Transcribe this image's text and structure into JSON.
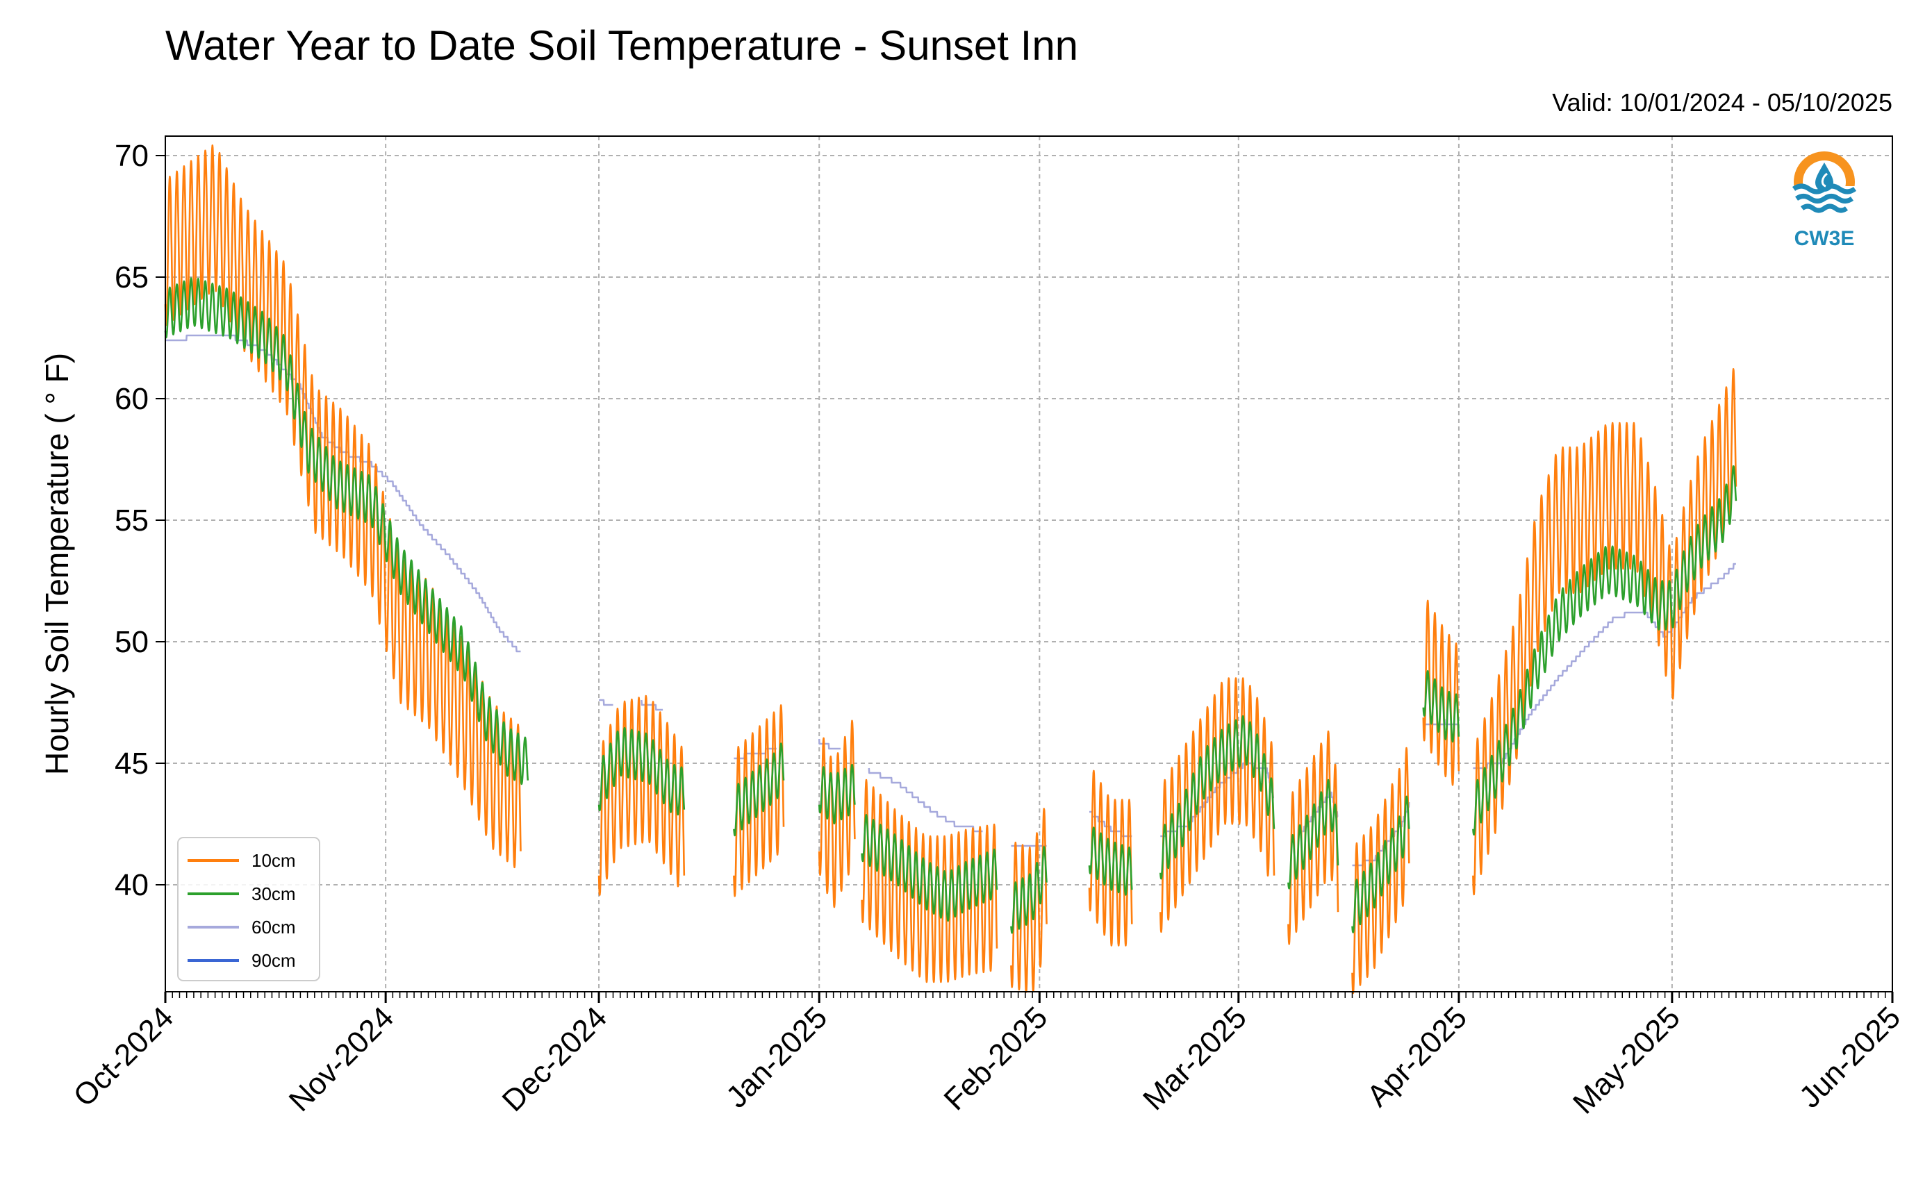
{
  "chart_data": {
    "type": "line",
    "title": "Water Year to Date Soil Temperature - Sunset Inn",
    "subtitle": "Valid: 10/01/2024 - 05/10/2025",
    "ylabel": "Hourly Soil Temperature ( ° F)",
    "xlabel": "",
    "ylim": [
      35.6,
      70.8
    ],
    "xlim": [
      "2024-10-01",
      "2025-06-01"
    ],
    "yticks": [
      40,
      45,
      50,
      55,
      60,
      65,
      70
    ],
    "xticks": [
      "Oct-2024",
      "Nov-2024",
      "Dec-2024",
      "Jan-2025",
      "Feb-2025",
      "Mar-2025",
      "Apr-2025",
      "May-2025",
      "Jun-2025"
    ],
    "grid": true,
    "legend_position": "bottom-left",
    "logo_text": "CW3E",
    "series": [
      {
        "name": "10cm",
        "color": "#ff7f0e",
        "diurnal_amplitude": 3,
        "segments": [
          [
            [
              "2024-10-01",
              66.0
            ],
            [
              "2024-10-08",
              67.5
            ],
            [
              "2024-10-12",
              65.0
            ],
            [
              "2024-10-18",
              62.5
            ],
            [
              "2024-10-22",
              57.5
            ],
            [
              "2024-10-26",
              56.5
            ],
            [
              "2024-10-30",
              55.0
            ],
            [
              "2024-11-03",
              50.5
            ],
            [
              "2024-11-07",
              49.5
            ],
            [
              "2024-11-12",
              47.0
            ],
            [
              "2024-11-16",
              44.5
            ],
            [
              "2024-11-20",
              43.5
            ]
          ],
          [
            [
              "2024-12-01",
              42.5
            ],
            [
              "2024-12-04",
              44.5
            ],
            [
              "2024-12-08",
              44.8
            ],
            [
              "2024-12-11",
              43.5
            ],
            [
              "2024-12-13",
              42.5
            ]
          ],
          [
            [
              "2024-12-20",
              42.5
            ],
            [
              "2024-12-26",
              44.2
            ],
            [
              "2024-12-27",
              44.5
            ]
          ],
          [
            [
              "2025-01-01",
              43.5
            ],
            [
              "2025-01-03",
              42.0
            ],
            [
              "2025-01-06",
              44.0
            ]
          ],
          [
            [
              "2025-01-07",
              41.5
            ],
            [
              "2025-01-12",
              40.0
            ],
            [
              "2025-01-16",
              39.0
            ],
            [
              "2025-01-19",
              39.0
            ],
            [
              "2025-01-22",
              39.3
            ],
            [
              "2025-01-26",
              39.5
            ]
          ],
          [
            [
              "2025-01-28",
              38.8
            ],
            [
              "2025-01-31",
              38.5
            ],
            [
              "2025-02-02",
              40.5
            ]
          ],
          [
            [
              "2025-02-08",
              42.0
            ],
            [
              "2025-02-11",
              40.5
            ],
            [
              "2025-02-14",
              40.5
            ]
          ],
          [
            [
              "2025-02-18",
              41.0
            ],
            [
              "2025-02-21",
              42.5
            ],
            [
              "2025-02-24",
              44.0
            ],
            [
              "2025-02-27",
              45.5
            ],
            [
              "2025-03-02",
              45.5
            ],
            [
              "2025-03-04",
              44.5
            ],
            [
              "2025-03-06",
              42.5
            ]
          ],
          [
            [
              "2025-03-08",
              40.5
            ],
            [
              "2025-03-11",
              42.0
            ],
            [
              "2025-03-14",
              43.5
            ],
            [
              "2025-03-15",
              41.0
            ]
          ],
          [
            [
              "2025-03-17",
              38.5
            ],
            [
              "2025-03-20",
              39.5
            ],
            [
              "2025-03-24",
              42.0
            ],
            [
              "2025-03-25",
              43.0
            ]
          ],
          [
            [
              "2025-03-27",
              49.0
            ],
            [
              "2025-03-30",
              47.5
            ],
            [
              "2025-04-01",
              46.8
            ]
          ],
          [
            [
              "2025-04-03",
              42.5
            ],
            [
              "2025-04-06",
              45.0
            ],
            [
              "2025-04-09",
              48.0
            ],
            [
              "2025-04-12",
              52.5
            ],
            [
              "2025-04-15",
              55.0
            ],
            [
              "2025-04-18",
              55.0
            ],
            [
              "2025-04-22",
              56.0
            ],
            [
              "2025-04-26",
              56.0
            ],
            [
              "2025-04-29",
              53.0
            ],
            [
              "2025-05-01",
              50.5
            ],
            [
              "2025-05-03",
              53.0
            ],
            [
              "2025-05-05",
              55.0
            ],
            [
              "2025-05-08",
              57.0
            ],
            [
              "2025-05-10",
              58.5
            ]
          ]
        ]
      },
      {
        "name": "30cm",
        "color": "#2ca02c",
        "diurnal_amplitude": 1,
        "segments": [
          [
            [
              "2024-10-01",
              63.5
            ],
            [
              "2024-10-05",
              64.0
            ],
            [
              "2024-10-10",
              63.5
            ],
            [
              "2024-10-15",
              62.5
            ],
            [
              "2024-10-18",
              61.5
            ],
            [
              "2024-10-21",
              58.0
            ],
            [
              "2024-10-25",
              56.5
            ],
            [
              "2024-10-30",
              55.8
            ],
            [
              "2024-11-03",
              53.0
            ],
            [
              "2024-11-08",
              51.0
            ],
            [
              "2024-11-12",
              49.5
            ],
            [
              "2024-11-15",
              47.0
            ],
            [
              "2024-11-18",
              45.5
            ],
            [
              "2024-11-21",
              45.0
            ]
          ],
          [
            [
              "2024-12-01",
              44.0
            ],
            [
              "2024-12-04",
              45.5
            ],
            [
              "2024-12-08",
              45.2
            ],
            [
              "2024-12-11",
              44.0
            ],
            [
              "2024-12-13",
              43.8
            ]
          ],
          [
            [
              "2024-12-20",
              43.0
            ],
            [
              "2024-12-26",
              44.5
            ],
            [
              "2024-12-27",
              45.0
            ]
          ],
          [
            [
              "2025-01-01",
              44.0
            ],
            [
              "2025-01-03",
              43.5
            ],
            [
              "2025-01-06",
              44.0
            ]
          ],
          [
            [
              "2025-01-07",
              42.0
            ],
            [
              "2025-01-12",
              41.0
            ],
            [
              "2025-01-16",
              40.0
            ],
            [
              "2025-01-19",
              39.5
            ],
            [
              "2025-01-22",
              40.0
            ],
            [
              "2025-01-26",
              40.5
            ]
          ],
          [
            [
              "2025-01-28",
              39.0
            ],
            [
              "2025-01-31",
              39.5
            ],
            [
              "2025-02-02",
              40.8
            ]
          ],
          [
            [
              "2025-02-08",
              41.5
            ],
            [
              "2025-02-11",
              40.8
            ],
            [
              "2025-02-14",
              40.5
            ]
          ],
          [
            [
              "2025-02-18",
              41.2
            ],
            [
              "2025-02-21",
              42.5
            ],
            [
              "2025-02-24",
              44.5
            ],
            [
              "2025-02-27",
              45.5
            ],
            [
              "2025-03-02",
              46.0
            ],
            [
              "2025-03-04",
              45.0
            ],
            [
              "2025-03-06",
              43.0
            ]
          ],
          [
            [
              "2025-03-08",
              40.8
            ],
            [
              "2025-03-11",
              42.0
            ],
            [
              "2025-03-14",
              43.5
            ],
            [
              "2025-03-15",
              41.5
            ]
          ],
          [
            [
              "2025-03-17",
              39.0
            ],
            [
              "2025-03-20",
              40.0
            ],
            [
              "2025-03-24",
              42.0
            ],
            [
              "2025-03-25",
              43.0
            ]
          ],
          [
            [
              "2025-03-27",
              48.0
            ],
            [
              "2025-03-30",
              47.0
            ],
            [
              "2025-04-01",
              46.8
            ]
          ],
          [
            [
              "2025-04-03",
              43.0
            ],
            [
              "2025-04-06",
              44.5
            ],
            [
              "2025-04-09",
              46.5
            ],
            [
              "2025-04-12",
              49.0
            ],
            [
              "2025-04-15",
              51.0
            ],
            [
              "2025-04-18",
              52.0
            ],
            [
              "2025-04-22",
              53.0
            ],
            [
              "2025-04-26",
              52.5
            ],
            [
              "2025-04-29",
              51.5
            ],
            [
              "2025-05-01",
              51.5
            ],
            [
              "2025-05-03",
              53.0
            ],
            [
              "2025-05-05",
              54.0
            ],
            [
              "2025-05-08",
              55.0
            ],
            [
              "2025-05-10",
              56.5
            ]
          ]
        ]
      },
      {
        "name": "60cm",
        "color": "#a6a9dc",
        "diurnal_amplitude": 0,
        "segments": [
          [
            [
              "2024-10-01",
              62.3
            ],
            [
              "2024-10-04",
              62.5
            ],
            [
              "2024-10-10",
              62.6
            ],
            [
              "2024-10-15",
              62.0
            ],
            [
              "2024-10-20",
              60.5
            ],
            [
              "2024-10-23",
              58.5
            ],
            [
              "2024-10-26",
              57.8
            ],
            [
              "2024-10-30",
              57.3
            ],
            [
              "2024-11-02",
              56.5
            ],
            [
              "2024-11-06",
              54.8
            ],
            [
              "2024-11-10",
              53.5
            ],
            [
              "2024-11-14",
              52.0
            ],
            [
              "2024-11-17",
              50.5
            ],
            [
              "2024-11-20",
              49.5
            ]
          ],
          [
            [
              "2024-12-01",
              47.6
            ],
            [
              "2024-12-03",
              47.3
            ]
          ],
          [
            [
              "2024-12-07",
              47.5
            ],
            [
              "2024-12-10",
              47.2
            ]
          ],
          [
            [
              "2024-12-20",
              45.2
            ],
            [
              "2024-12-26",
              45.6
            ]
          ],
          [
            [
              "2025-01-01",
              45.9
            ],
            [
              "2025-01-03",
              45.6
            ],
            [
              "2025-01-04",
              45.5
            ]
          ],
          [
            [
              "2025-01-08",
              44.7
            ],
            [
              "2025-01-12",
              44.2
            ],
            [
              "2025-01-17",
              43.0
            ],
            [
              "2025-01-20",
              42.5
            ],
            [
              "2025-01-24",
              42.2
            ]
          ],
          [
            [
              "2025-01-28",
              41.6
            ],
            [
              "2025-02-02",
              41.5
            ]
          ],
          [
            [
              "2025-02-08",
              43.0
            ],
            [
              "2025-02-11",
              42.3
            ],
            [
              "2025-02-14",
              41.9
            ]
          ],
          [
            [
              "2025-02-18",
              42.0
            ],
            [
              "2025-02-22",
              42.5
            ],
            [
              "2025-02-26",
              44.0
            ],
            [
              "2025-03-02",
              45.0
            ],
            [
              "2025-03-05",
              44.7
            ],
            [
              "2025-03-06",
              43.5
            ]
          ],
          [
            [
              "2025-03-10",
              42.2
            ],
            [
              "2025-03-12",
              43.0
            ],
            [
              "2025-03-14",
              43.8
            ],
            [
              "2025-03-15",
              42.8
            ]
          ],
          [
            [
              "2025-03-17",
              40.8
            ],
            [
              "2025-03-20",
              41.0
            ],
            [
              "2025-03-24",
              42.5
            ],
            [
              "2025-03-25",
              43.3
            ]
          ],
          [
            [
              "2025-03-27",
              46.5
            ],
            [
              "2025-03-30",
              46.7
            ],
            [
              "2025-04-01",
              46.5
            ]
          ],
          [
            [
              "2025-04-03",
              44.8
            ],
            [
              "2025-04-07",
              45.0
            ],
            [
              "2025-04-11",
              47.0
            ],
            [
              "2025-04-15",
              48.5
            ],
            [
              "2025-04-19",
              49.8
            ],
            [
              "2025-04-23",
              51.0
            ],
            [
              "2025-04-27",
              51.3
            ],
            [
              "2025-04-30",
              50.2
            ],
            [
              "2025-05-01",
              50.5
            ],
            [
              "2025-05-04",
              51.8
            ],
            [
              "2025-05-08",
              52.6
            ],
            [
              "2025-05-10",
              53.2
            ]
          ]
        ]
      },
      {
        "name": "90cm",
        "color": "#3a66d4",
        "diurnal_amplitude": 0,
        "segments": []
      }
    ]
  }
}
